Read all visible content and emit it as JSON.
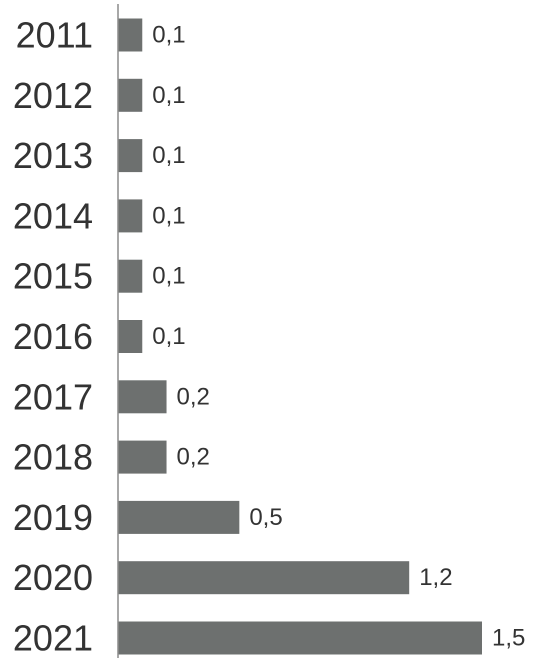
{
  "chart_data": {
    "type": "bar",
    "orientation": "horizontal",
    "categories": [
      "2011",
      "2012",
      "2013",
      "2014",
      "2015",
      "2016",
      "2017",
      "2018",
      "2019",
      "2020",
      "2021"
    ],
    "values": [
      0.1,
      0.1,
      0.1,
      0.1,
      0.1,
      0.1,
      0.2,
      0.2,
      0.5,
      1.2,
      1.5
    ],
    "data_labels": [
      "0,1",
      "0,1",
      "0,1",
      "0,1",
      "0,1",
      "0,1",
      "0,2",
      "0,2",
      "0,5",
      "1,2",
      "1,5"
    ],
    "title": "",
    "xlabel": "",
    "ylabel": "",
    "xlim": [
      0,
      1.5
    ],
    "grid": false,
    "legend": "none",
    "colors": {
      "bar": "#6d706f",
      "axis": "#8c8c8c",
      "text": "#333333"
    }
  }
}
